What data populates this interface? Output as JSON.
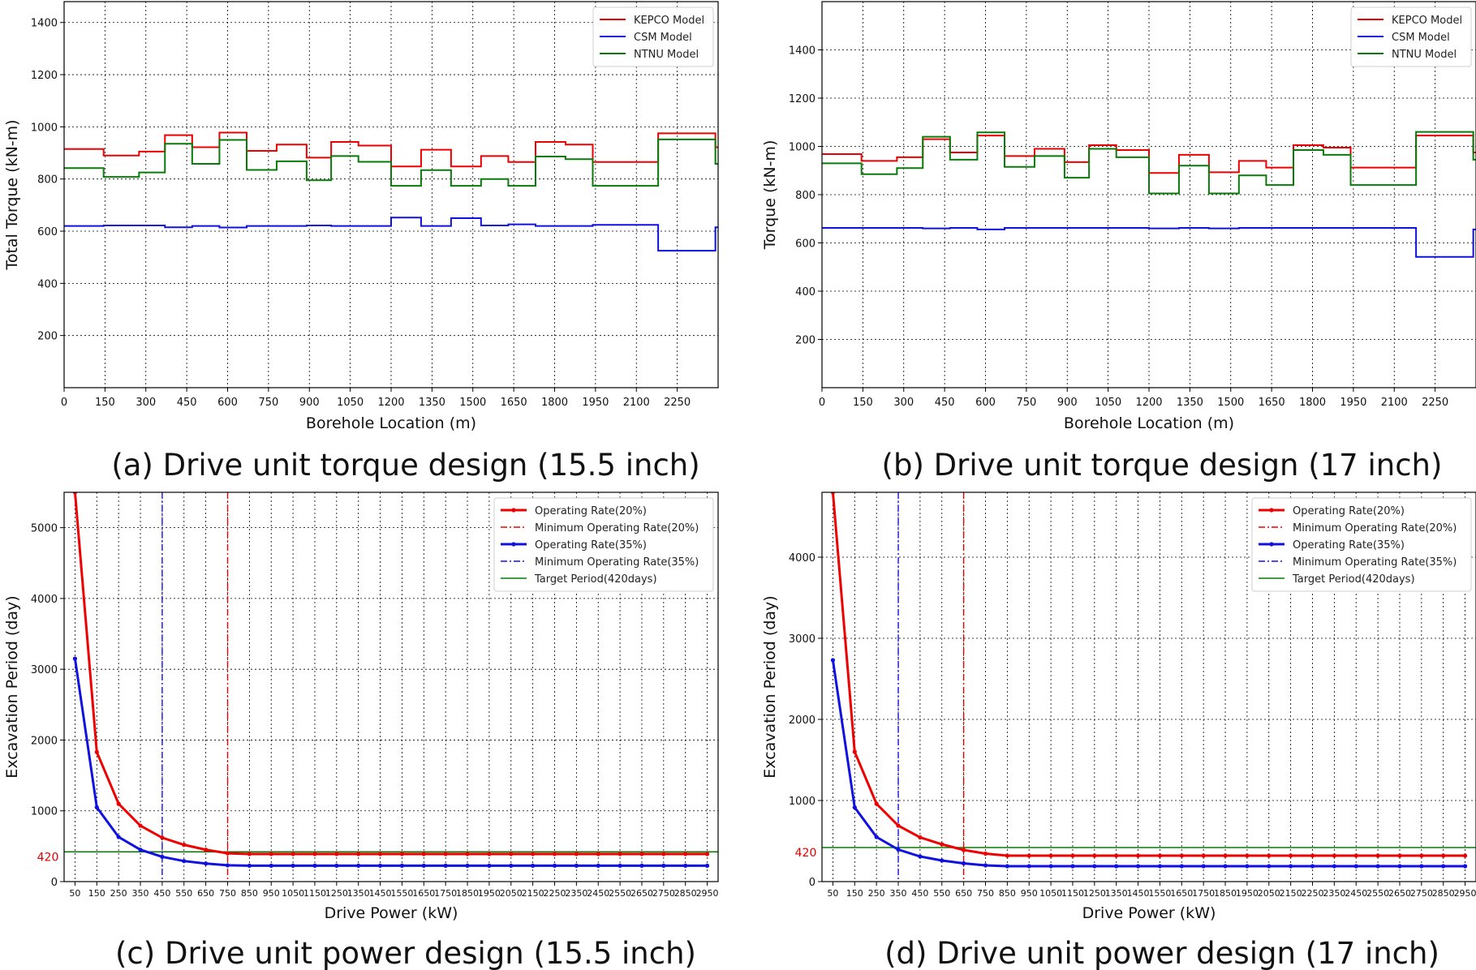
{
  "colors": {
    "red": "#ee0000",
    "blue": "#1010e0",
    "green": "#0a7a0a",
    "grid": "#000000"
  },
  "chart_data": [
    {
      "id": "a",
      "type": "line",
      "step": true,
      "caption": "(a) Drive unit torque design (15.5 inch)",
      "xlabel": "Borehole Location (m)",
      "ylabel": "Total Torque (kN-m)",
      "xlim": [
        0,
        2400
      ],
      "ylim": [
        0,
        1480
      ],
      "xticks": [
        0,
        150,
        300,
        450,
        600,
        750,
        900,
        1050,
        1200,
        1350,
        1500,
        1650,
        1800,
        1950,
        2100,
        2250
      ],
      "yticks": [
        200,
        400,
        600,
        800,
        1000,
        1200,
        1400
      ],
      "legend": "top-right",
      "edges": [
        0,
        145,
        275,
        370,
        470,
        570,
        670,
        780,
        890,
        980,
        1080,
        1200,
        1310,
        1420,
        1530,
        1630,
        1730,
        1840,
        1940,
        2180,
        2390,
        2400
      ],
      "series": [
        {
          "name": "KEPCO Model",
          "color": "red",
          "values": [
            915,
            890,
            905,
            968,
            922,
            978,
            908,
            932,
            882,
            942,
            928,
            848,
            912,
            848,
            888,
            865,
            942,
            932,
            865,
            975,
            922
          ]
        },
        {
          "name": "CSM Model",
          "color": "blue",
          "values": [
            620,
            622,
            622,
            615,
            620,
            614,
            620,
            620,
            622,
            620,
            620,
            652,
            620,
            650,
            622,
            626,
            620,
            620,
            624,
            525,
            615
          ]
        },
        {
          "name": "NTNU Model",
          "color": "green",
          "values": [
            842,
            808,
            825,
            935,
            858,
            950,
            835,
            868,
            795,
            888,
            866,
            774,
            834,
            774,
            800,
            774,
            886,
            876,
            774,
            952,
            858
          ]
        }
      ]
    },
    {
      "id": "b",
      "type": "line",
      "step": true,
      "caption": "(b) Drive unit torque design (17 inch)",
      "xlabel": "Borehole Location (m)",
      "ylabel": "Torque (kN-m)",
      "xlim": [
        0,
        2400
      ],
      "ylim": [
        0,
        1600
      ],
      "xticks": [
        0,
        150,
        300,
        450,
        600,
        750,
        900,
        1050,
        1200,
        1350,
        1500,
        1650,
        1800,
        1950,
        2100,
        2250
      ],
      "yticks": [
        200,
        400,
        600,
        800,
        1000,
        1200,
        1400
      ],
      "legend": "top-right",
      "edges": [
        0,
        145,
        275,
        370,
        470,
        570,
        670,
        780,
        890,
        980,
        1080,
        1200,
        1310,
        1420,
        1530,
        1630,
        1730,
        1840,
        1940,
        2180,
        2390,
        2400
      ],
      "series": [
        {
          "name": "KEPCO Model",
          "color": "red",
          "values": [
            968,
            940,
            955,
            1030,
            975,
            1045,
            960,
            990,
            935,
            1005,
            985,
            890,
            965,
            893,
            940,
            912,
            1005,
            995,
            912,
            1045,
            975
          ]
        },
        {
          "name": "CSM Model",
          "color": "blue",
          "values": [
            662,
            662,
            662,
            660,
            662,
            656,
            662,
            662,
            662,
            662,
            662,
            660,
            662,
            660,
            662,
            662,
            662,
            662,
            662,
            542,
            656
          ]
        },
        {
          "name": "NTNU Model",
          "color": "green",
          "values": [
            930,
            885,
            910,
            1040,
            945,
            1058,
            915,
            960,
            870,
            990,
            955,
            805,
            920,
            805,
            880,
            840,
            985,
            965,
            840,
            1060,
            945
          ]
        }
      ]
    },
    {
      "id": "c",
      "type": "line",
      "caption": "(c) Drive unit power design (15.5 inch)",
      "xlabel": "Drive Power (kW)",
      "ylabel": "Excavation Period (day)",
      "xlim": [
        0,
        3000
      ],
      "ylim": [
        0,
        5500
      ],
      "xticks": [
        50,
        150,
        250,
        350,
        450,
        550,
        650,
        750,
        850,
        950,
        1050,
        1150,
        1250,
        1350,
        1450,
        1550,
        1650,
        1750,
        1850,
        1950,
        2050,
        2150,
        2250,
        2350,
        2450,
        2550,
        2650,
        2750,
        2850,
        2950
      ],
      "yticks": [
        0,
        1000,
        2000,
        3000,
        4000,
        5000
      ],
      "legend": "top-right",
      "x": [
        50,
        150,
        250,
        350,
        450,
        550,
        650,
        750,
        850,
        950,
        1050,
        1150,
        1250,
        1350,
        1450,
        1550,
        1650,
        1750,
        1850,
        1950,
        2050,
        2150,
        2250,
        2350,
        2450,
        2550,
        2650,
        2750,
        2850,
        2950
      ],
      "series": [
        {
          "name": "Operating Rate(20%)",
          "color": "red",
          "style": "solid-marker",
          "values": [
            5500,
            1830,
            1100,
            790,
            620,
            520,
            450,
            400,
            390,
            390,
            390,
            390,
            390,
            390,
            390,
            390,
            390,
            390,
            390,
            390,
            390,
            390,
            390,
            390,
            390,
            390,
            390,
            390,
            390,
            390
          ]
        },
        {
          "name": "Operating Rate(35%)",
          "color": "blue",
          "style": "solid-marker",
          "values": [
            3150,
            1050,
            630,
            450,
            350,
            290,
            255,
            230,
            225,
            225,
            225,
            225,
            225,
            225,
            225,
            225,
            225,
            225,
            225,
            225,
            225,
            225,
            225,
            225,
            225,
            225,
            225,
            225,
            225,
            225
          ]
        }
      ],
      "vlines": [
        {
          "name": "Minimum Operating Rate(20%)",
          "color": "red",
          "x": 750
        },
        {
          "name": "Minimum Operating Rate(35%)",
          "color": "blue",
          "x": 450
        }
      ],
      "hline": {
        "name": "Target Period(420days)",
        "color": "green",
        "y": 420,
        "annotation": "420"
      }
    },
    {
      "id": "d",
      "type": "line",
      "caption": "(d) Drive unit power design (17 inch)",
      "xlabel": "Drive Power (kW)",
      "ylabel": "Excavation Period (day)",
      "xlim": [
        0,
        3000
      ],
      "ylim": [
        0,
        4800
      ],
      "xticks": [
        50,
        150,
        250,
        350,
        450,
        550,
        650,
        750,
        850,
        950,
        1050,
        1150,
        1250,
        1350,
        1450,
        1550,
        1650,
        1750,
        1850,
        1950,
        2050,
        2150,
        2250,
        2350,
        2450,
        2550,
        2650,
        2750,
        2850,
        2950
      ],
      "yticks": [
        0,
        1000,
        2000,
        3000,
        4000
      ],
      "legend": "top-right",
      "x": [
        50,
        150,
        250,
        350,
        450,
        550,
        650,
        750,
        850,
        950,
        1050,
        1150,
        1250,
        1350,
        1450,
        1550,
        1650,
        1750,
        1850,
        1950,
        2050,
        2150,
        2250,
        2350,
        2450,
        2550,
        2650,
        2750,
        2850,
        2950
      ],
      "series": [
        {
          "name": "Operating Rate(20%)",
          "color": "red",
          "style": "solid-marker",
          "values": [
            4800,
            1600,
            960,
            690,
            545,
            460,
            390,
            345,
            320,
            320,
            320,
            320,
            320,
            320,
            320,
            320,
            320,
            320,
            320,
            320,
            320,
            320,
            320,
            320,
            320,
            320,
            320,
            320,
            320,
            320
          ]
        },
        {
          "name": "Operating Rate(35%)",
          "color": "blue",
          "style": "solid-marker",
          "values": [
            2730,
            915,
            550,
            395,
            310,
            260,
            225,
            200,
            190,
            190,
            190,
            190,
            190,
            190,
            190,
            190,
            190,
            190,
            190,
            190,
            190,
            190,
            190,
            190,
            190,
            190,
            190,
            190,
            190,
            190
          ]
        }
      ],
      "vlines": [
        {
          "name": "Minimum Operating Rate(20%)",
          "color": "red",
          "x": 650
        },
        {
          "name": "Minimum Operating Rate(35%)",
          "color": "blue",
          "x": 350
        }
      ],
      "hline": {
        "name": "Target Period(420days)",
        "color": "green",
        "y": 420,
        "annotation": "420"
      }
    }
  ]
}
